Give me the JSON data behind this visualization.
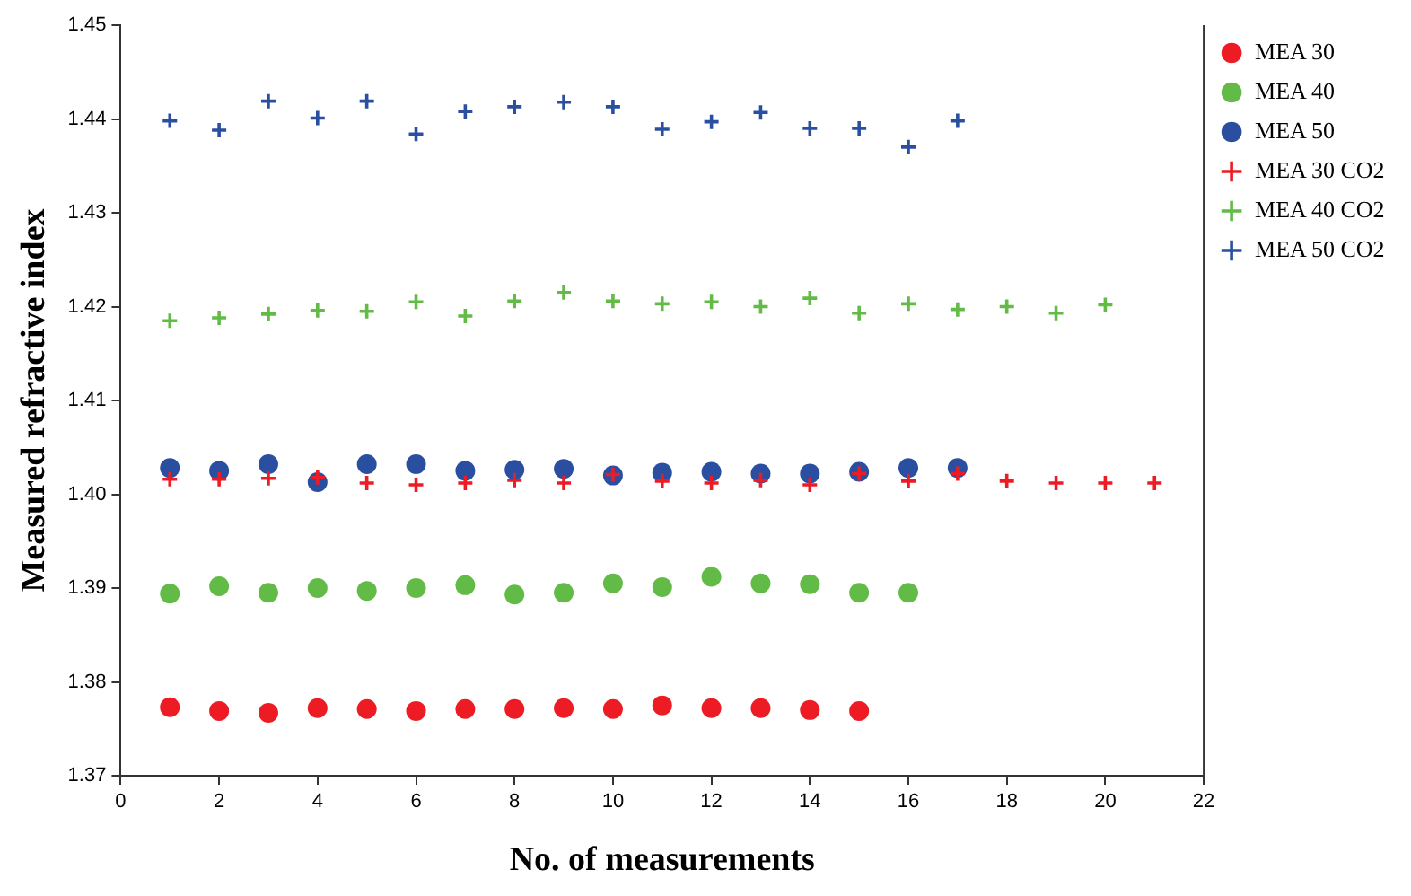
{
  "chart_data": {
    "type": "scatter",
    "xlabel": "No. of measurements",
    "ylabel": "Measured refractive index",
    "xlim": [
      0,
      22
    ],
    "xticks": [
      0,
      2,
      4,
      6,
      8,
      10,
      12,
      14,
      16,
      18,
      20,
      22
    ],
    "ylim": [
      1.37,
      1.45
    ],
    "yticks": [
      1.37,
      1.38,
      1.39,
      {
        "value": 1.4,
        "label": "1.40"
      },
      1.41,
      1.42,
      1.43,
      1.44,
      1.45
    ],
    "grid": false,
    "legend": "right",
    "series": [
      {
        "name": "MEA 30",
        "color": "#ed1c24",
        "marker": "circle",
        "x": [
          1,
          2,
          3,
          4,
          5,
          6,
          7,
          8,
          9,
          10,
          11,
          12,
          13,
          14,
          15
        ],
        "values": [
          1.3773,
          1.3769,
          1.3767,
          1.3772,
          1.3771,
          1.3769,
          1.3771,
          1.3771,
          1.3772,
          1.3771,
          1.3775,
          1.3772,
          1.3772,
          1.377,
          1.3769
        ]
      },
      {
        "name": "MEA 40",
        "color": "#62bb46",
        "marker": "circle",
        "x": [
          1,
          2,
          3,
          4,
          5,
          6,
          7,
          8,
          9,
          10,
          11,
          12,
          13,
          14,
          15,
          16
        ],
        "values": [
          1.3894,
          1.3902,
          1.3895,
          1.39,
          1.3897,
          1.39,
          1.3903,
          1.3893,
          1.3895,
          1.3905,
          1.3901,
          1.3912,
          1.3905,
          1.3904,
          1.3895,
          1.3895
        ]
      },
      {
        "name": "MEA 50",
        "color": "#2a4fa0",
        "marker": "circle",
        "x": [
          1,
          2,
          3,
          4,
          5,
          6,
          7,
          8,
          9,
          10,
          11,
          12,
          13,
          14,
          15,
          16,
          17
        ],
        "values": [
          1.4028,
          1.4025,
          1.4032,
          1.4013,
          1.4032,
          1.4032,
          1.4025,
          1.4026,
          1.4027,
          1.402,
          1.4023,
          1.4024,
          1.4022,
          1.4022,
          1.4024,
          1.4028,
          1.4028
        ]
      },
      {
        "name": "MEA 30 CO2",
        "color": "#ed1c24",
        "marker": "cross",
        "x": [
          1,
          2,
          3,
          4,
          5,
          6,
          7,
          8,
          9,
          10,
          11,
          12,
          13,
          14,
          15,
          16,
          17,
          18,
          19,
          20,
          21
        ],
        "values": [
          1.4016,
          1.4016,
          1.4017,
          1.4018,
          1.4012,
          1.401,
          1.4012,
          1.4015,
          1.4012,
          1.4021,
          1.4014,
          1.4012,
          1.4015,
          1.401,
          1.4022,
          1.4014,
          1.4022,
          1.4014,
          1.4012,
          1.4012,
          1.4012
        ]
      },
      {
        "name": "MEA 40 CO2",
        "color": "#62bb46",
        "marker": "cross",
        "x": [
          1,
          2,
          3,
          4,
          5,
          6,
          7,
          8,
          9,
          10,
          11,
          12,
          13,
          14,
          15,
          16,
          17,
          18,
          19,
          20
        ],
        "values": [
          1.4185,
          1.4188,
          1.4192,
          1.4196,
          1.4195,
          1.4205,
          1.419,
          1.4206,
          1.4215,
          1.4206,
          1.4203,
          1.4205,
          1.42,
          1.4209,
          1.4193,
          1.4203,
          1.4197,
          1.42,
          1.4193,
          1.4202
        ]
      },
      {
        "name": "MEA 50 CO2",
        "color": "#2a4fa0",
        "marker": "cross",
        "x": [
          1,
          2,
          3,
          4,
          5,
          6,
          7,
          8,
          9,
          10,
          11,
          12,
          13,
          14,
          15,
          16,
          17
        ],
        "values": [
          1.4398,
          1.4388,
          1.4419,
          1.4401,
          1.4419,
          1.4384,
          1.4408,
          1.4413,
          1.4418,
          1.4413,
          1.4389,
          1.4397,
          1.4407,
          1.439,
          1.439,
          1.437,
          1.4398
        ]
      }
    ]
  }
}
